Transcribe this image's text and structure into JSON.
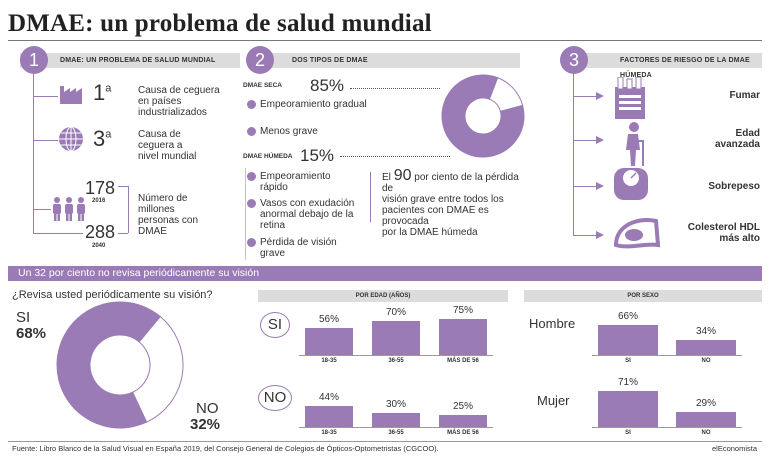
{
  "title": "DMAE: un problema de salud mundial",
  "colors": {
    "accent": "#9a7bb5",
    "header_bg": "#dcdcdc"
  },
  "section1": {
    "number": "1",
    "header": "DMAE: UN PROBLEMA DE SALUD MUNDIAL",
    "item1_rank": "1",
    "item1_sup": "a",
    "item1_text": [
      "Causa de ceguera",
      "en países",
      "industrializados"
    ],
    "item2_rank": "3",
    "item2_sup": "a",
    "item2_text": [
      "Causa de",
      "ceguera a",
      "nivel mundial"
    ],
    "people_2016": "178",
    "year_2016": "2016",
    "people_2040": "288",
    "year_2040": "2040",
    "people_text": [
      "Número de",
      "millones",
      "personas con",
      "DMAE"
    ]
  },
  "section2": {
    "number": "2",
    "header": "DOS TIPOS DE DMAE",
    "seca_label": "DMAE SECA",
    "seca_pct": "85%",
    "seca_bullets": [
      [
        "Empeoramiento gradual"
      ],
      [
        "Menos grave"
      ]
    ],
    "humeda_label": "DMAE HÚMEDA",
    "humeda_pct": "15%",
    "humeda_bullets": [
      [
        "Empeoramiento",
        "rápido"
      ],
      [
        "Vasos con exudación",
        "anormal debajo de la",
        "retina"
      ],
      [
        "Pérdida de visión",
        "grave"
      ]
    ],
    "note_pre": "El",
    "note_big": "90",
    "note_line1": "por ciento de la pérdida de",
    "note_rest": [
      "visión grave entre todos los",
      "pacientes con DMAE es provocada",
      "por la DMAE húmeda"
    ]
  },
  "section3": {
    "number": "3",
    "header": "FACTORES DE RIESGO DE LA DMAE HÚMEDA",
    "factors": [
      [
        "Fumar"
      ],
      [
        "Edad",
        "avanzada"
      ],
      [
        "Sobrepeso"
      ],
      [
        "Colesterol HDL",
        "más alto"
      ]
    ]
  },
  "band": "Un 32 por ciento no revisa periódicamente su visión",
  "question": "¿Revisa usted periódicamente su visión?",
  "pie_yes_label": "SI",
  "pie_yes_pct": "68%",
  "pie_no_label": "NO",
  "pie_no_pct": "32%",
  "age_header": "POR EDAD (AÑOS)",
  "sex_header": "POR SEXO",
  "row_si": "SI",
  "row_no": "NO",
  "hombre": "Hombre",
  "mujer": "Mujer",
  "chart_data": [
    {
      "type": "pie",
      "title": "¿Revisa usted periódicamente su visión?",
      "categories": [
        "SI",
        "NO"
      ],
      "values": [
        68,
        32
      ]
    },
    {
      "type": "pie",
      "categories": [
        "DMAE SECA",
        "DMAE HÚMEDA"
      ],
      "values": [
        85,
        15
      ]
    },
    {
      "type": "bar",
      "title": "POR EDAD (AÑOS)",
      "row": "SI",
      "categories": [
        "18-35",
        "36-55",
        "MÁS DE 56"
      ],
      "values": [
        56,
        70,
        75
      ],
      "labels": [
        "56%",
        "70%",
        "75%"
      ]
    },
    {
      "type": "bar",
      "title": "POR EDAD (AÑOS)",
      "row": "NO",
      "categories": [
        "18-35",
        "36-55",
        "MÁS DE 56"
      ],
      "values": [
        44,
        30,
        25
      ],
      "labels": [
        "44%",
        "30%",
        "25%"
      ]
    },
    {
      "type": "bar",
      "title": "POR SEXO",
      "row": "Hombre",
      "categories": [
        "SI",
        "NO"
      ],
      "values": [
        66,
        34
      ],
      "labels": [
        "66%",
        "34%"
      ]
    },
    {
      "type": "bar",
      "title": "POR SEXO",
      "row": "Mujer",
      "categories": [
        "SI",
        "NO"
      ],
      "values": [
        71,
        29
      ],
      "labels": [
        "71%",
        "29%"
      ]
    }
  ],
  "footer": "Fuente: Libro Blanco de la Salud Visual en España 2019, del Consejo General de Colegios de Ópticos-Optometristas (CGCOO).",
  "brand": "elEconomista"
}
